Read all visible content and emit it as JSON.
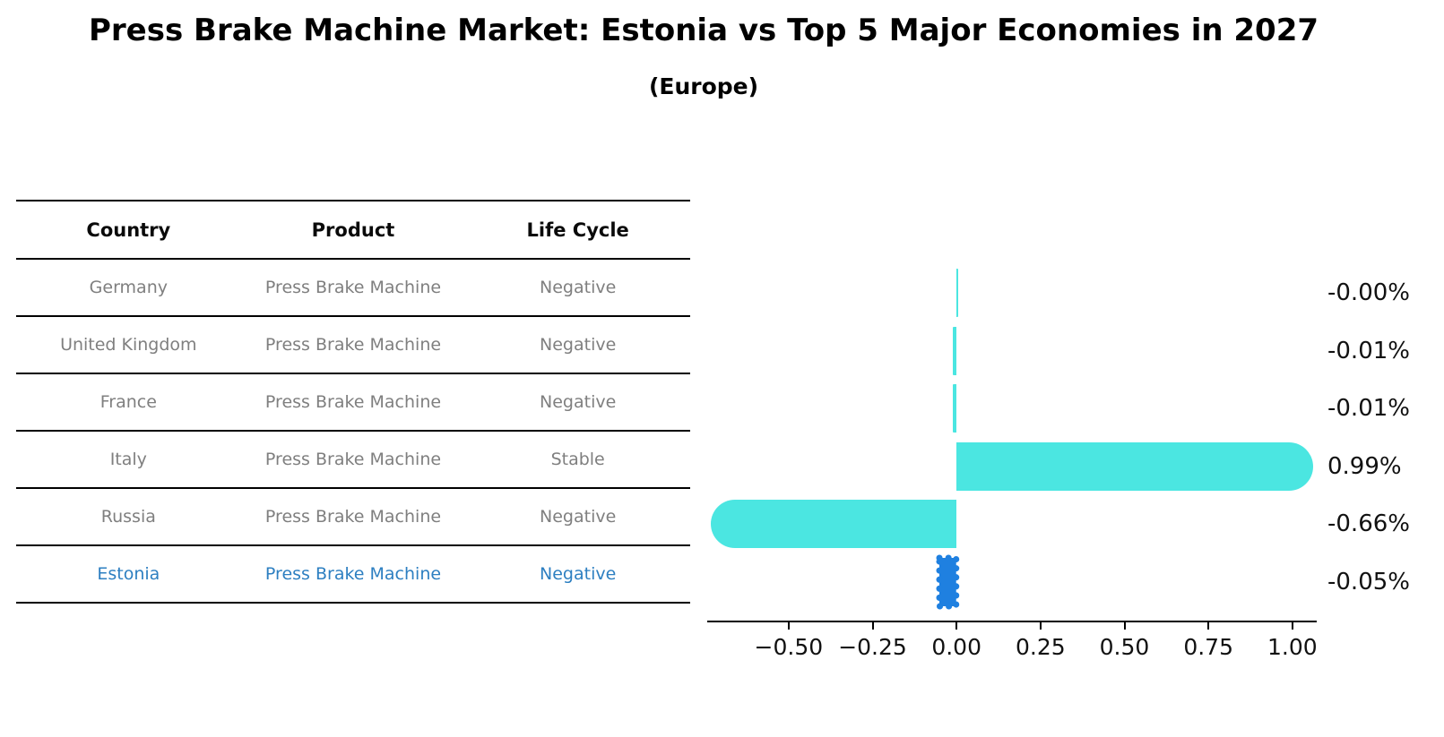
{
  "title": "Press Brake Machine Market: Estonia vs Top 5 Major Economies in 2027",
  "subtitle": "(Europe)",
  "table": {
    "columns": [
      "Country",
      "Product",
      "Life Cycle"
    ],
    "column_keys": [
      "country",
      "product",
      "life_cycle"
    ],
    "rows": [
      {
        "country": "Germany",
        "product": "Press Brake Machine",
        "life_cycle": "Negative",
        "highlight": false
      },
      {
        "country": "United Kingdom",
        "product": "Press Brake Machine",
        "life_cycle": "Negative",
        "highlight": false
      },
      {
        "country": "France",
        "product": "Press Brake Machine",
        "life_cycle": "Negative",
        "highlight": false
      },
      {
        "country": "Italy",
        "product": "Press Brake Machine",
        "life_cycle": "Stable",
        "highlight": false
      },
      {
        "country": "Russia",
        "product": "Press Brake Machine",
        "life_cycle": "Negative",
        "highlight": false
      },
      {
        "country": "Estonia",
        "product": "Press Brake Machine",
        "life_cycle": "Negative",
        "highlight": true
      }
    ]
  },
  "chart_data": {
    "type": "bar",
    "orientation": "horizontal",
    "title": "",
    "xlabel": "",
    "ylabel": "",
    "categories": [
      "Germany",
      "United Kingdom",
      "France",
      "Italy",
      "Russia",
      "Estonia"
    ],
    "values": [
      -0.0,
      -0.01,
      -0.01,
      0.99,
      -0.66,
      -0.05
    ],
    "value_labels": [
      "-0.00%",
      "-0.01%",
      "-0.01%",
      "0.99%",
      "-0.66%",
      "-0.05%"
    ],
    "x_ticks": [
      -0.5,
      -0.25,
      0.0,
      0.25,
      0.5,
      0.75,
      1.0
    ],
    "x_tick_labels": [
      "−0.50",
      "−0.25",
      "0.00",
      "0.25",
      "0.50",
      "0.75",
      "1.00"
    ],
    "xlim": [
      -0.7425,
      1.0725
    ],
    "grid": false,
    "legend": "none",
    "highlight_index": 5,
    "highlight_style": "dotted"
  },
  "colors": {
    "bar_cyan": "#4BE6E1",
    "bar_blue": "#1F80E0",
    "highlight_text": "#2D7FC1",
    "row_text": "#7F7F7F",
    "header_text": "#0A0A0A",
    "axis": "#000000"
  }
}
